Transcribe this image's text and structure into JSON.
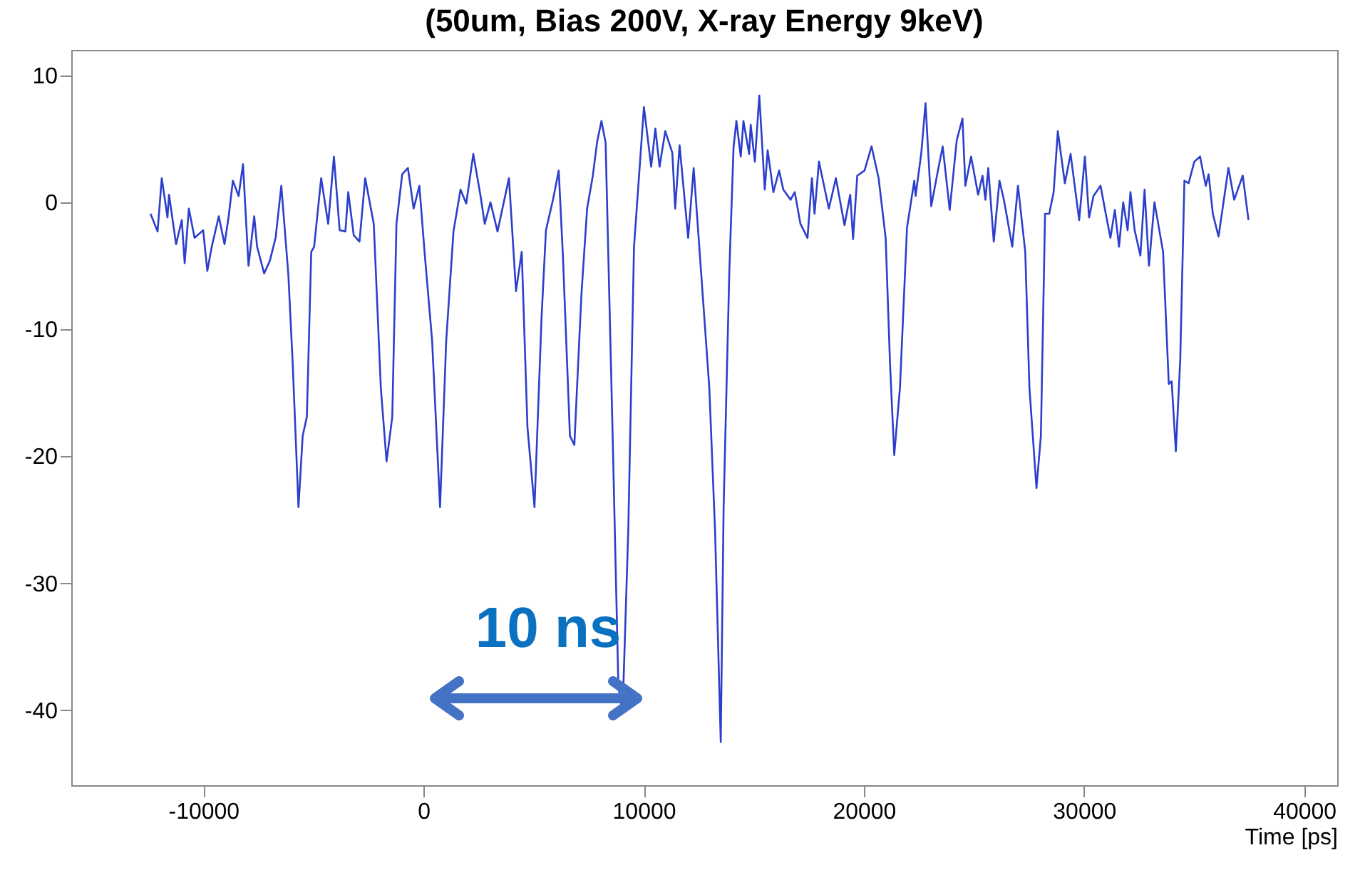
{
  "chart_data": {
    "type": "line",
    "title": "(50um, Bias 200V, X-ray Energy 9keV)",
    "xlabel": "Time [ps]",
    "xlim": [
      -16000,
      41500
    ],
    "ylim": [
      -45.9,
      12
    ],
    "xticks": [
      -10000,
      0,
      10000,
      20000,
      30000,
      40000
    ],
    "yticks": [
      -40,
      -30,
      -20,
      -10,
      0,
      10
    ],
    "grid": false,
    "marker": "none",
    "line_style": "solid",
    "annotations": [
      "10 ns"
    ],
    "series": [
      {
        "color": "#2b3fcc",
        "x": [
          -12400,
          -12080,
          -11890,
          -11630,
          -11560,
          -11240,
          -10980,
          -10850,
          -10660,
          -10400,
          -10010,
          -9820,
          -9620,
          -9300,
          -9040,
          -8850,
          -8660,
          -8400,
          -8200,
          -7950,
          -7690,
          -7560,
          -7240,
          -6980,
          -6720,
          -6460,
          -6140,
          -5940,
          -5680,
          -5490,
          -5300,
          -5100,
          -4970,
          -4650,
          -4330,
          -4070,
          -3810,
          -3550,
          -3420,
          -3170,
          -2910,
          -2650,
          -2260,
          -1940,
          -1680,
          -1420,
          -1230,
          -970,
          -710,
          -450,
          -190,
          60,
          390,
          750,
          1030,
          1360,
          1680,
          1940,
          2260,
          2580,
          2780,
          3040,
          3360,
          3880,
          4200,
          4460,
          4720,
          5040,
          5360,
          5560,
          5880,
          6140,
          6330,
          6650,
          6850,
          7170,
          7430,
          7690,
          7880,
          8080,
          8270,
          8590,
          8850,
          9040,
          9300,
          9560,
          10010,
          10340,
          10530,
          10720,
          10980,
          11300,
          11430,
          11630,
          12020,
          12270,
          12660,
          12980,
          13240,
          13500,
          13630,
          13890,
          14080,
          14210,
          14410,
          14530,
          14790,
          14860,
          15050,
          15250,
          15500,
          15630,
          15890,
          16150,
          16340,
          16670,
          16860,
          17120,
          17440,
          17640,
          17760,
          17960,
          18410,
          18730,
          19120,
          19380,
          19510,
          19700,
          20030,
          20350,
          20670,
          20990,
          21190,
          21380,
          21640,
          21960,
          22290,
          22350,
          22610,
          22800,
          23060,
          23320,
          23580,
          23900,
          24220,
          24480,
          24610,
          24870,
          25190,
          25390,
          25520,
          25650,
          25900,
          26160,
          26360,
          26740,
          27000,
          27330,
          27520,
          27840,
          28040,
          28230,
          28420,
          28620,
          28810,
          29130,
          29390,
          29780,
          30040,
          30230,
          30430,
          30750,
          31010,
          31200,
          31400,
          31590,
          31780,
          31980,
          32110,
          32300,
          32560,
          32750,
          32950,
          33200,
          33590,
          33850,
          33980,
          34170,
          34370,
          34560,
          34750,
          35010,
          35270,
          35530,
          35660,
          35850,
          36110,
          36560,
          36820,
          37210,
          37470
        ],
        "values": [
          -0.9,
          -2.3,
          1.9,
          -1.2,
          0.6,
          -3.3,
          -1.4,
          -4.8,
          -0.5,
          -2.8,
          -2.2,
          -5.4,
          -3.5,
          -1.1,
          -3.3,
          -1.1,
          1.7,
          0.5,
          3.0,
          -5.0,
          -1.1,
          -3.5,
          -5.6,
          -4.6,
          -2.8,
          1.3,
          -5.7,
          -12.8,
          -24.0,
          -18.4,
          -16.9,
          -3.9,
          -3.5,
          1.9,
          -1.7,
          3.6,
          -2.2,
          -2.3,
          0.8,
          -2.6,
          -3.1,
          1.9,
          -1.7,
          -14.6,
          -20.4,
          -16.9,
          -1.7,
          2.2,
          2.7,
          -0.5,
          1.3,
          -4.2,
          -10.9,
          -24.0,
          -10.9,
          -2.3,
          1.0,
          -0.1,
          3.8,
          0.6,
          -1.7,
          0.0,
          -2.3,
          1.9,
          -7.0,
          -3.9,
          -17.7,
          -24.0,
          -9.1,
          -2.2,
          0.2,
          2.5,
          -4.2,
          -18.4,
          -19.1,
          -7.3,
          -0.5,
          2.1,
          4.7,
          6.4,
          4.7,
          -18.4,
          -38.1,
          -40.2,
          -25.8,
          -3.5,
          7.5,
          2.8,
          5.8,
          2.8,
          5.6,
          3.9,
          -0.5,
          4.5,
          -2.8,
          2.7,
          -6.8,
          -14.6,
          -25.8,
          -42.5,
          -24.0,
          -5.4,
          4.3,
          6.4,
          3.6,
          6.4,
          3.8,
          6.1,
          3.2,
          8.4,
          1.0,
          4.1,
          0.8,
          2.5,
          1.0,
          0.2,
          0.8,
          -1.7,
          -2.8,
          1.9,
          -0.9,
          3.2,
          -0.5,
          1.9,
          -1.8,
          0.6,
          -2.9,
          2.1,
          2.5,
          4.4,
          1.9,
          -2.8,
          -12.8,
          -19.9,
          -14.6,
          -2.0,
          1.7,
          0.5,
          3.9,
          7.8,
          -0.3,
          2.1,
          4.4,
          -0.6,
          4.9,
          6.6,
          1.3,
          3.6,
          0.6,
          2.1,
          0.2,
          2.7,
          -3.1,
          1.7,
          0.2,
          -3.5,
          1.3,
          -3.9,
          -14.6,
          -22.5,
          -18.4,
          -0.9,
          -0.9,
          0.8,
          5.6,
          1.5,
          3.8,
          -1.4,
          3.6,
          -1.2,
          0.5,
          1.3,
          -1.1,
          -2.8,
          -0.6,
          -3.5,
          0.0,
          -2.2,
          0.8,
          -2.2,
          -4.2,
          1.0,
          -5.0,
          0.0,
          -3.9,
          -14.3,
          -14.1,
          -19.6,
          -12.4,
          1.7,
          1.5,
          3.2,
          3.6,
          1.3,
          2.2,
          -0.9,
          -2.7,
          2.7,
          0.2,
          2.1,
          -1.4
        ]
      }
    ]
  }
}
